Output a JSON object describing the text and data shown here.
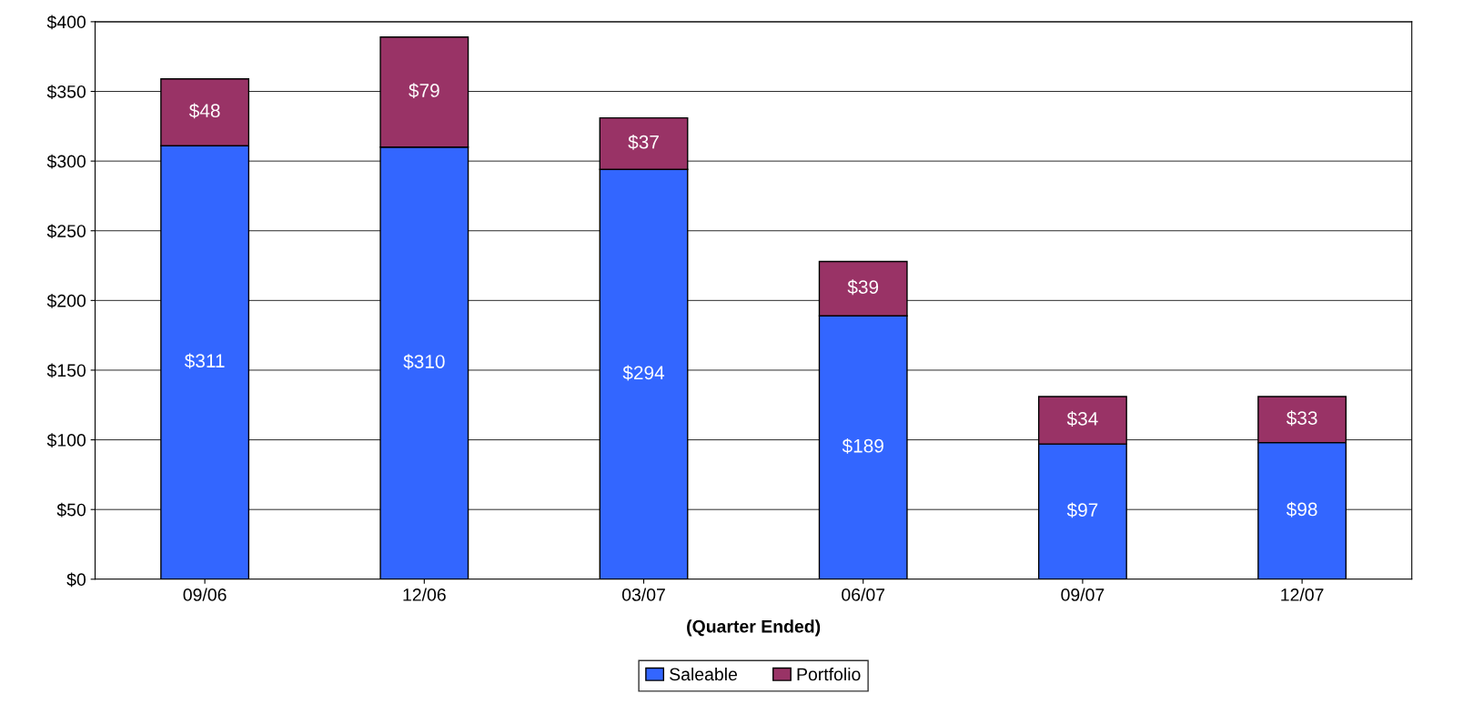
{
  "chart_data": {
    "type": "bar",
    "stacked": true,
    "xlabel": "(Quarter Ended)",
    "categories": [
      "09/06",
      "12/06",
      "03/07",
      "06/07",
      "09/07",
      "12/07"
    ],
    "series": [
      {
        "name": "Saleable",
        "color": "#3366ff",
        "values": [
          311,
          310,
          294,
          189,
          97,
          98
        ],
        "value_labels": [
          "$311",
          "$310",
          "$294",
          "$189",
          "$97",
          "$98"
        ]
      },
      {
        "name": "Portfolio",
        "color": "#993366",
        "values": [
          48,
          79,
          37,
          39,
          34,
          33
        ],
        "value_labels": [
          "$48",
          "$79",
          "$37",
          "$39",
          "$34",
          "$33"
        ]
      }
    ],
    "ylim": [
      0,
      400
    ],
    "yticks": [
      {
        "value": 0,
        "label": "$0"
      },
      {
        "value": 50,
        "label": "$50"
      },
      {
        "value": 100,
        "label": "$100"
      },
      {
        "value": 150,
        "label": "$150"
      },
      {
        "value": 200,
        "label": "$200"
      },
      {
        "value": 250,
        "label": "$250"
      },
      {
        "value": 300,
        "label": "$300"
      },
      {
        "value": 350,
        "label": "$350"
      },
      {
        "value": 400,
        "label": "$400"
      }
    ],
    "grid": "y",
    "legend": "bottom"
  }
}
